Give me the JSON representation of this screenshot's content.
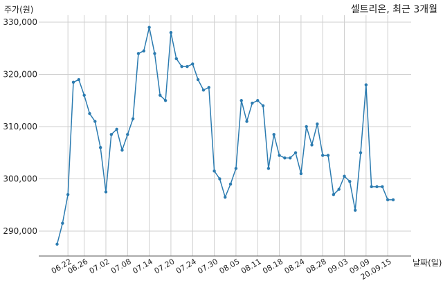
{
  "chart_data": {
    "type": "line",
    "title": "셀트리온, 최근 3개월",
    "ylabel": "주가(원)",
    "xlabel": "날짜(일)",
    "ylim": [
      285000,
      330000
    ],
    "yticks": [
      290000,
      300000,
      310000,
      320000,
      330000
    ],
    "ytick_labels": [
      "290,000",
      "300,000",
      "310,000",
      "320,000",
      "330,000"
    ],
    "x_tick_index": [
      2,
      5,
      9,
      13,
      17,
      21,
      25,
      29,
      33,
      37,
      41,
      45,
      49,
      53,
      57,
      61
    ],
    "x_tick_labels": [
      "06.22",
      "06.26",
      "07.02",
      "07.08",
      "07.14",
      "07.20",
      "07.24",
      "07.30",
      "08.05",
      "08.11",
      "08.18",
      "08.24",
      "08.28",
      "09.03",
      "09.09",
      "20.09.15"
    ],
    "grid": true,
    "line_color": "#2b7bb0",
    "series": [
      {
        "values": [
          287500,
          291500,
          297000,
          318500,
          319000,
          316000,
          312500,
          311000,
          306000,
          297500,
          308500,
          309500,
          305500,
          308500,
          311500,
          324000,
          324500,
          329000,
          324000,
          316000,
          315000,
          328000,
          323000,
          321500,
          321500,
          322000,
          319000,
          317000,
          317500,
          301500,
          300000,
          296500,
          299000,
          302000,
          315000,
          311000,
          314500,
          315000,
          314000,
          302000,
          308500,
          304500,
          304000,
          304000,
          305000,
          301000,
          310000,
          306500,
          310500,
          304500,
          304500,
          297000,
          298000,
          300500,
          299500,
          294000,
          305000,
          318000,
          298500,
          298500,
          298500,
          296000,
          296000
        ]
      }
    ]
  }
}
